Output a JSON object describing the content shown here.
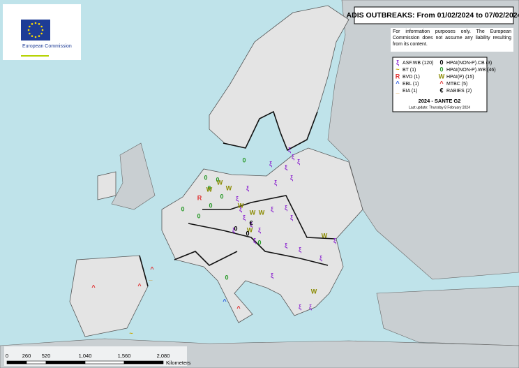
{
  "header": {
    "title": "ADIS OUTBREAKS: From 01/02/2024 to 07/02/2024",
    "logo_text": "European Commission"
  },
  "disclaimer": "For information purposes only. The European Commission does not assume any liability resulting from its content.",
  "legend": {
    "items": [
      {
        "symbol": "ξ",
        "label": "ASF.WB (120)",
        "color": "#8e2bd0"
      },
      {
        "symbol": "~",
        "label": "BT (1)",
        "color": "#c9a800"
      },
      {
        "symbol": "R",
        "label": "BVD (1)",
        "color": "#e03030"
      },
      {
        "symbol": "^",
        "label": "EBL (1)",
        "color": "#3060e0"
      },
      {
        "symbol": "_",
        "label": "EIA (1)",
        "color": "#d08000"
      },
      {
        "symbol": "0",
        "label": "HPAI(NON-P).CB (3)",
        "color": "#000000"
      },
      {
        "symbol": "0",
        "label": "HPAI(NON-P).WB (46)",
        "color": "#2a9a2a"
      },
      {
        "symbol": "W",
        "label": "HPAI(P) (15)",
        "color": "#8a8a00"
      },
      {
        "symbol": "^",
        "label": "MTBC (5)",
        "color": "#e03030"
      },
      {
        "symbol": "€",
        "label": "RABIES (2)",
        "color": "#000000"
      }
    ],
    "footer": "2024 - SANTE G2",
    "update": "Last update: Thursday 8 February 2024"
  },
  "scale": {
    "ticks": [
      "0",
      "260",
      "520",
      "1,040",
      "1,560",
      "2,080"
    ],
    "unit": "Kilometers"
  }
}
